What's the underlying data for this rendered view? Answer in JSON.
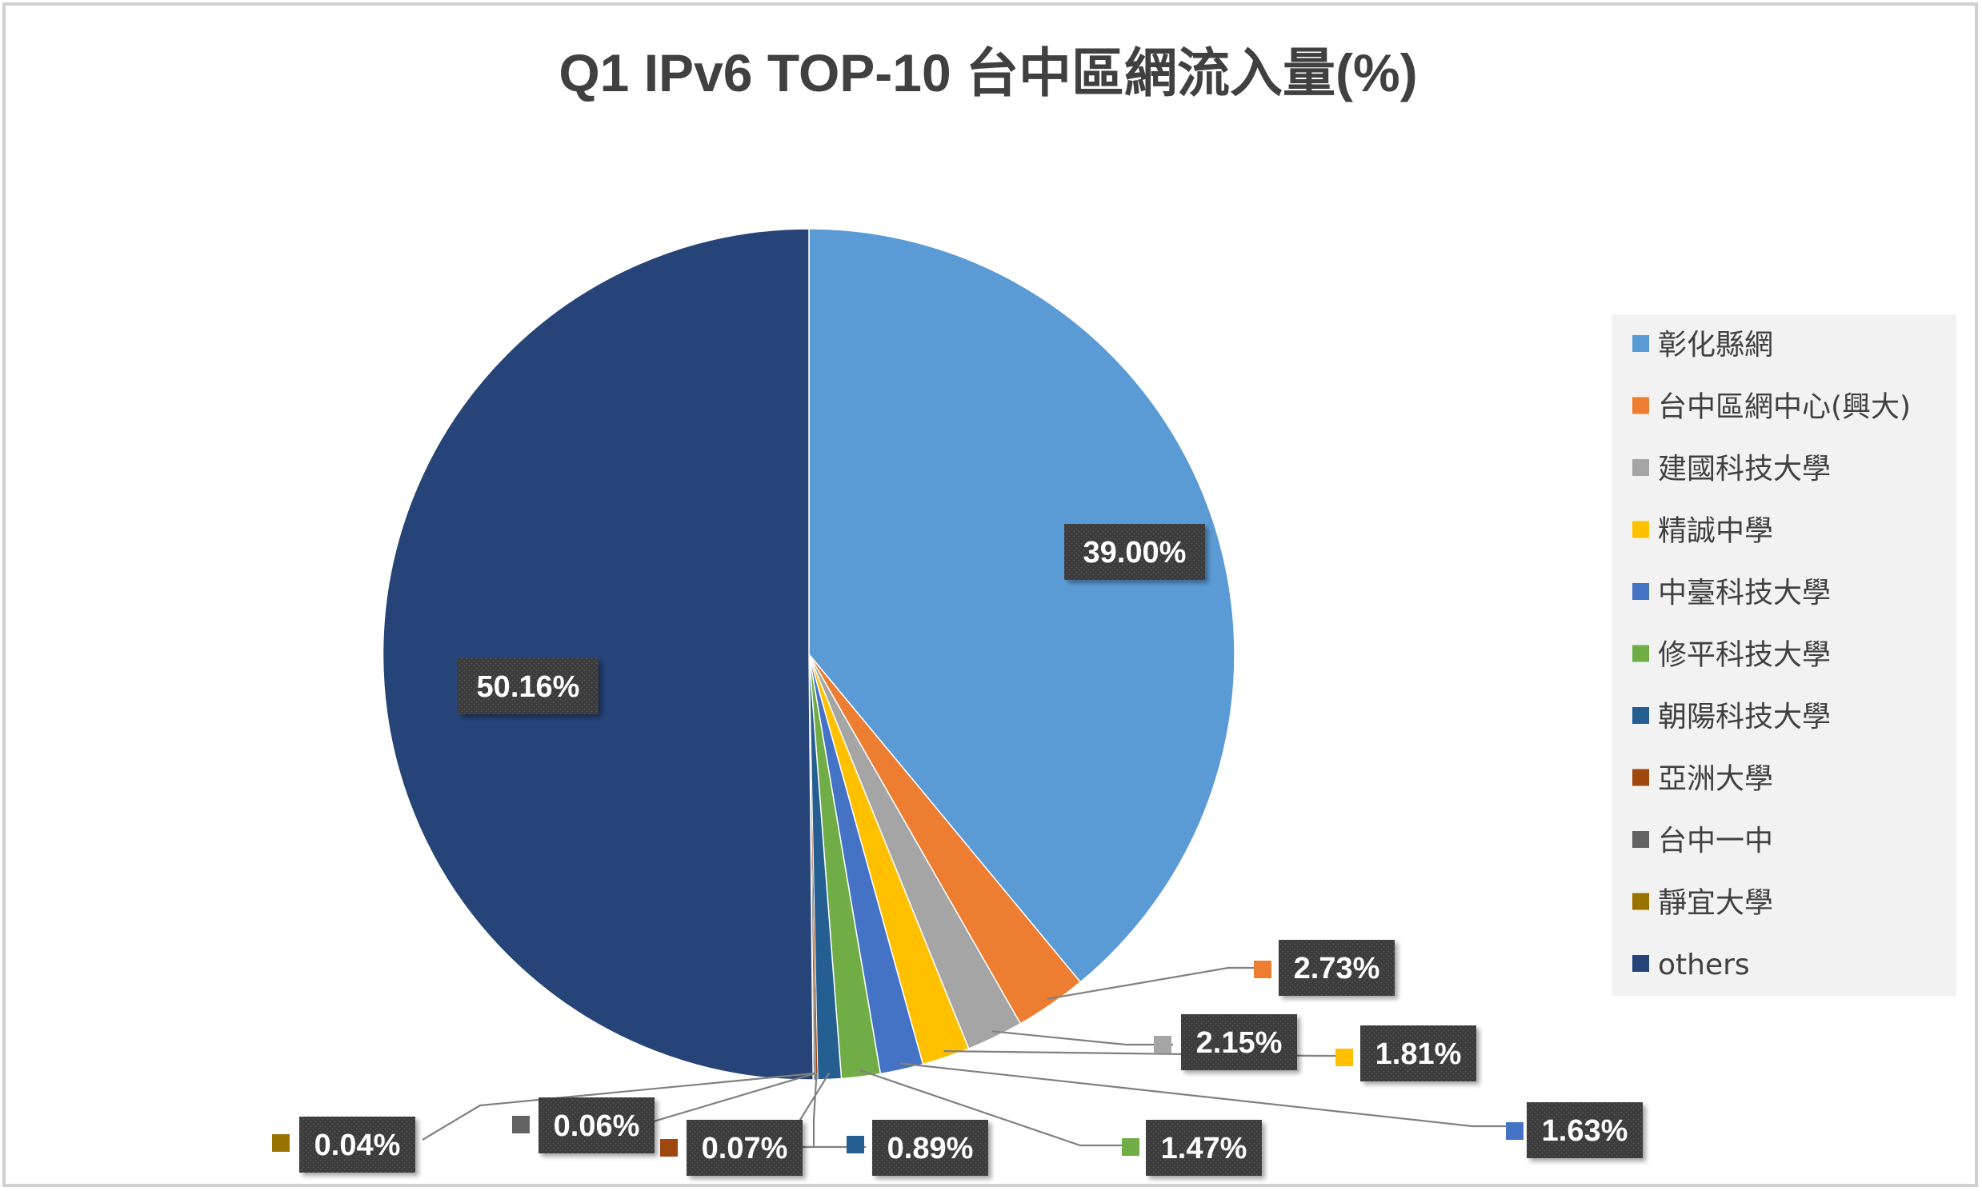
{
  "chart_data": {
    "type": "pie",
    "title": "Q1 IPv6 TOP-10 台中區網流入量(%)",
    "legend_position": "right",
    "slices": [
      {
        "label": "彰化縣網",
        "value": 39.0,
        "value_label": "39.00%",
        "color": "#5b9bd5"
      },
      {
        "label": "台中區網中心(興大)",
        "value": 2.73,
        "value_label": "2.73%",
        "color": "#ed7d31"
      },
      {
        "label": "建國科技大學",
        "value": 2.15,
        "value_label": "2.15%",
        "color": "#a5a5a5"
      },
      {
        "label": "精誠中學",
        "value": 1.81,
        "value_label": "1.81%",
        "color": "#ffc000"
      },
      {
        "label": "中臺科技大學",
        "value": 1.63,
        "value_label": "1.63%",
        "color": "#4472c4"
      },
      {
        "label": "修平科技大學",
        "value": 1.47,
        "value_label": "1.47%",
        "color": "#70ad47"
      },
      {
        "label": "朝陽科技大學",
        "value": 0.89,
        "value_label": "0.89%",
        "color": "#255e91"
      },
      {
        "label": "亞洲大學",
        "value": 0.07,
        "value_label": "0.07%",
        "color": "#9e480e"
      },
      {
        "label": "台中一中",
        "value": 0.06,
        "value_label": "0.06%",
        "color": "#636363"
      },
      {
        "label": "靜宜大學",
        "value": 0.04,
        "value_label": "0.04%",
        "color": "#997300"
      },
      {
        "label": "others",
        "value": 50.16,
        "value_label": "50.16%",
        "color": "#264478"
      }
    ]
  }
}
